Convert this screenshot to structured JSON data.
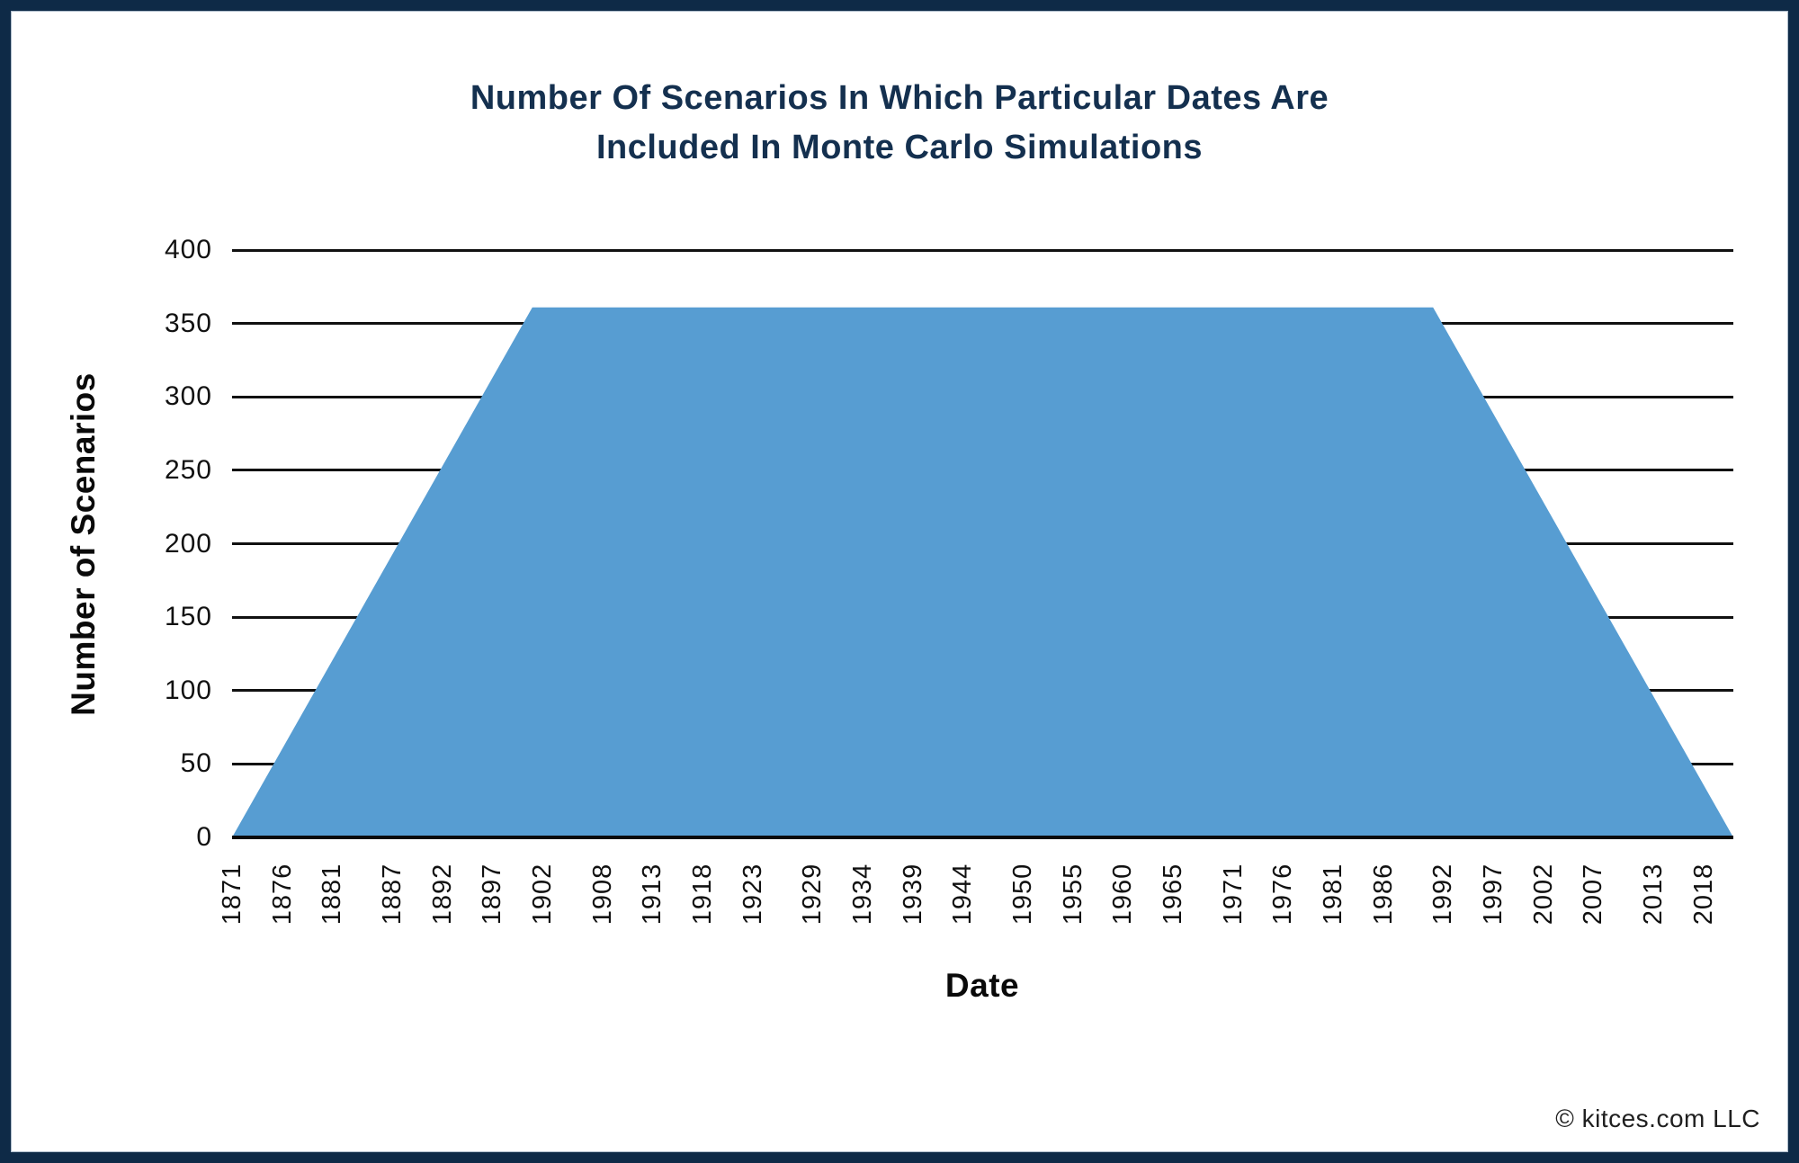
{
  "title": {
    "line1": "Number Of Scenarios In Which Particular Dates Are",
    "line2": "Included In Monte Carlo Simulations"
  },
  "footer": {
    "copyright": "© kitces.com LLC"
  },
  "colors": {
    "area_fill": "#579DD2",
    "frame_navy": "#0E2A47",
    "title_navy": "#14304F",
    "gridline": "#111111",
    "axis_text": "#111111"
  },
  "chart_data": {
    "type": "area",
    "title": "Number Of Scenarios In Which Particular Dates Are Included In Monte Carlo Simulations",
    "xlabel": "Date",
    "ylabel": "Number of Scenarios",
    "x_range": [
      1871,
      2021
    ],
    "ylim": [
      0,
      400
    ],
    "y_ticks": [
      0,
      50,
      100,
      150,
      200,
      250,
      300,
      350,
      400
    ],
    "x_tick_labels": [
      "1871",
      "1876",
      "1881",
      "1887",
      "1892",
      "1897",
      "1902",
      "1908",
      "1913",
      "1918",
      "1923",
      "1929",
      "1934",
      "1939",
      "1944",
      "1950",
      "1955",
      "1960",
      "1965",
      "1971",
      "1976",
      "1981",
      "1986",
      "1992",
      "1997",
      "2002",
      "2007",
      "2013",
      "2018"
    ],
    "series": [
      {
        "name": "Number of Scenarios",
        "points": [
          {
            "x": 1871,
            "y": 0
          },
          {
            "x": 1901,
            "y": 361
          },
          {
            "x": 1991,
            "y": 361
          },
          {
            "x": 2021,
            "y": 0
          }
        ]
      }
    ],
    "grid": "horizontal",
    "legend_position": "none"
  }
}
